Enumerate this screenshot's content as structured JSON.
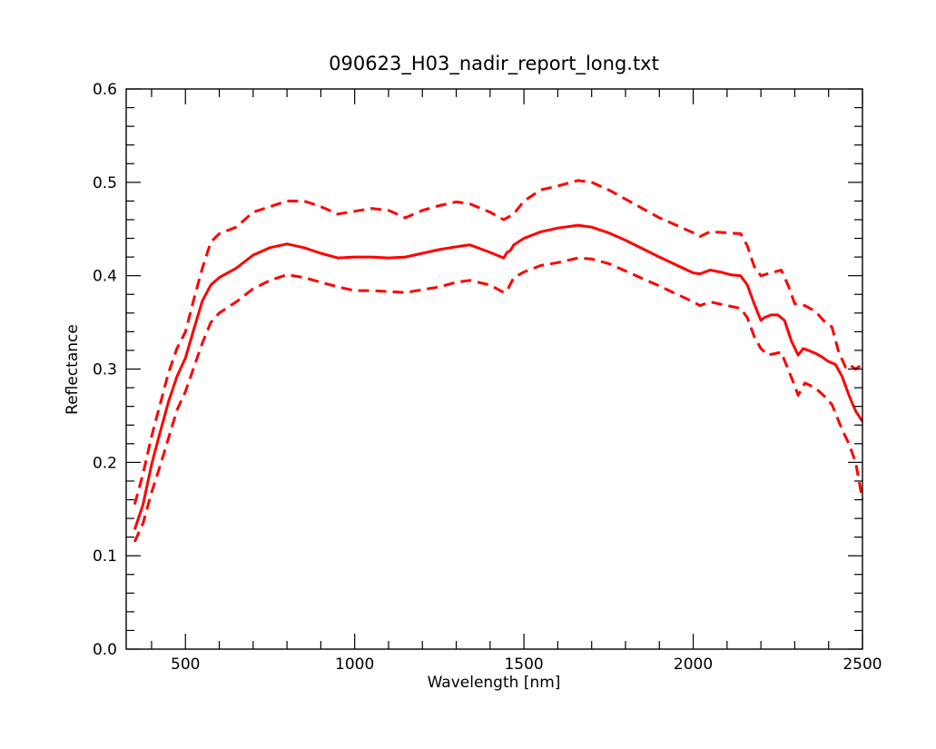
{
  "chart_data": {
    "type": "line",
    "title": "090623_H03_nadir_report_long.txt",
    "xlabel": "Wavelength [nm]",
    "ylabel": "Reflectance",
    "xlim": [
      325,
      2500
    ],
    "ylim": [
      0.0,
      0.6
    ],
    "x_ticks": [
      500,
      1000,
      1500,
      2000,
      2500
    ],
    "x_tick_labels": [
      "500",
      "1000",
      "1500",
      "2000",
      "2500"
    ],
    "y_ticks": [
      0.0,
      0.1,
      0.2,
      0.3,
      0.4,
      0.5,
      0.6
    ],
    "y_tick_labels": [
      "0.0",
      "0.1",
      "0.2",
      "0.3",
      "0.4",
      "0.5",
      "0.6"
    ],
    "grid": false,
    "colors": {
      "series": "#ff0000",
      "axes": "#000000"
    },
    "series": [
      {
        "style": "solid",
        "x": [
          350,
          375,
          400,
          425,
          450,
          475,
          500,
          525,
          550,
          575,
          600,
          650,
          700,
          750,
          800,
          850,
          900,
          950,
          1000,
          1050,
          1100,
          1150,
          1200,
          1250,
          1300,
          1340,
          1400,
          1440,
          1450,
          1460,
          1470,
          1500,
          1550,
          1600,
          1660,
          1700,
          1750,
          1800,
          1900,
          2000,
          2020,
          2050,
          2080,
          2110,
          2140,
          2160,
          2180,
          2200,
          2210,
          2230,
          2250,
          2270,
          2290,
          2310,
          2325,
          2340,
          2360,
          2380,
          2400,
          2420,
          2440,
          2460,
          2480,
          2500
        ],
        "y": [
          0.128,
          0.155,
          0.198,
          0.232,
          0.265,
          0.292,
          0.312,
          0.343,
          0.373,
          0.39,
          0.398,
          0.408,
          0.422,
          0.43,
          0.434,
          0.43,
          0.424,
          0.419,
          0.42,
          0.42,
          0.419,
          0.42,
          0.424,
          0.428,
          0.431,
          0.433,
          0.425,
          0.419,
          0.425,
          0.427,
          0.433,
          0.44,
          0.447,
          0.451,
          0.454,
          0.452,
          0.446,
          0.438,
          0.42,
          0.403,
          0.402,
          0.406,
          0.404,
          0.401,
          0.4,
          0.39,
          0.37,
          0.352,
          0.355,
          0.358,
          0.358,
          0.352,
          0.33,
          0.315,
          0.322,
          0.32,
          0.317,
          0.313,
          0.308,
          0.305,
          0.292,
          0.272,
          0.255,
          0.244
        ]
      },
      {
        "style": "dashed",
        "x": [
          350,
          375,
          400,
          425,
          450,
          475,
          500,
          525,
          550,
          575,
          600,
          650,
          700,
          750,
          800,
          850,
          900,
          950,
          1000,
          1050,
          1100,
          1150,
          1200,
          1250,
          1300,
          1340,
          1400,
          1440,
          1450,
          1470,
          1500,
          1550,
          1600,
          1660,
          1700,
          1750,
          1800,
          1900,
          2000,
          2020,
          2050,
          2100,
          2140,
          2160,
          2180,
          2200,
          2220,
          2260,
          2280,
          2300,
          2330,
          2360,
          2390,
          2410,
          2430,
          2450,
          2460,
          2480,
          2500
        ],
        "y": [
          0.155,
          0.188,
          0.228,
          0.262,
          0.296,
          0.322,
          0.34,
          0.375,
          0.408,
          0.436,
          0.445,
          0.452,
          0.468,
          0.474,
          0.48,
          0.48,
          0.474,
          0.466,
          0.469,
          0.472,
          0.47,
          0.462,
          0.47,
          0.475,
          0.479,
          0.477,
          0.468,
          0.46,
          0.462,
          0.466,
          0.48,
          0.492,
          0.496,
          0.502,
          0.5,
          0.492,
          0.482,
          0.462,
          0.446,
          0.442,
          0.447,
          0.446,
          0.445,
          0.432,
          0.41,
          0.4,
          0.402,
          0.406,
          0.39,
          0.37,
          0.368,
          0.362,
          0.35,
          0.345,
          0.318,
          0.302,
          0.305,
          0.3,
          0.305
        ]
      },
      {
        "style": "dashed",
        "x": [
          350,
          375,
          400,
          425,
          450,
          475,
          500,
          525,
          550,
          575,
          600,
          650,
          700,
          750,
          800,
          850,
          900,
          950,
          1000,
          1050,
          1100,
          1150,
          1200,
          1250,
          1300,
          1340,
          1400,
          1440,
          1450,
          1470,
          1500,
          1550,
          1600,
          1660,
          1700,
          1750,
          1800,
          1900,
          2000,
          2020,
          2050,
          2100,
          2140,
          2160,
          2180,
          2200,
          2220,
          2260,
          2280,
          2300,
          2310,
          2330,
          2360,
          2390,
          2410,
          2440,
          2460,
          2480,
          2500
        ],
        "y": [
          0.115,
          0.135,
          0.168,
          0.196,
          0.226,
          0.256,
          0.276,
          0.302,
          0.328,
          0.35,
          0.36,
          0.372,
          0.386,
          0.395,
          0.401,
          0.398,
          0.393,
          0.388,
          0.384,
          0.384,
          0.383,
          0.382,
          0.385,
          0.388,
          0.393,
          0.395,
          0.39,
          0.382,
          0.384,
          0.398,
          0.404,
          0.411,
          0.414,
          0.419,
          0.418,
          0.413,
          0.405,
          0.389,
          0.372,
          0.368,
          0.372,
          0.368,
          0.365,
          0.355,
          0.335,
          0.322,
          0.315,
          0.318,
          0.3,
          0.282,
          0.272,
          0.285,
          0.28,
          0.27,
          0.262,
          0.235,
          0.22,
          0.2,
          0.16
        ]
      }
    ]
  }
}
